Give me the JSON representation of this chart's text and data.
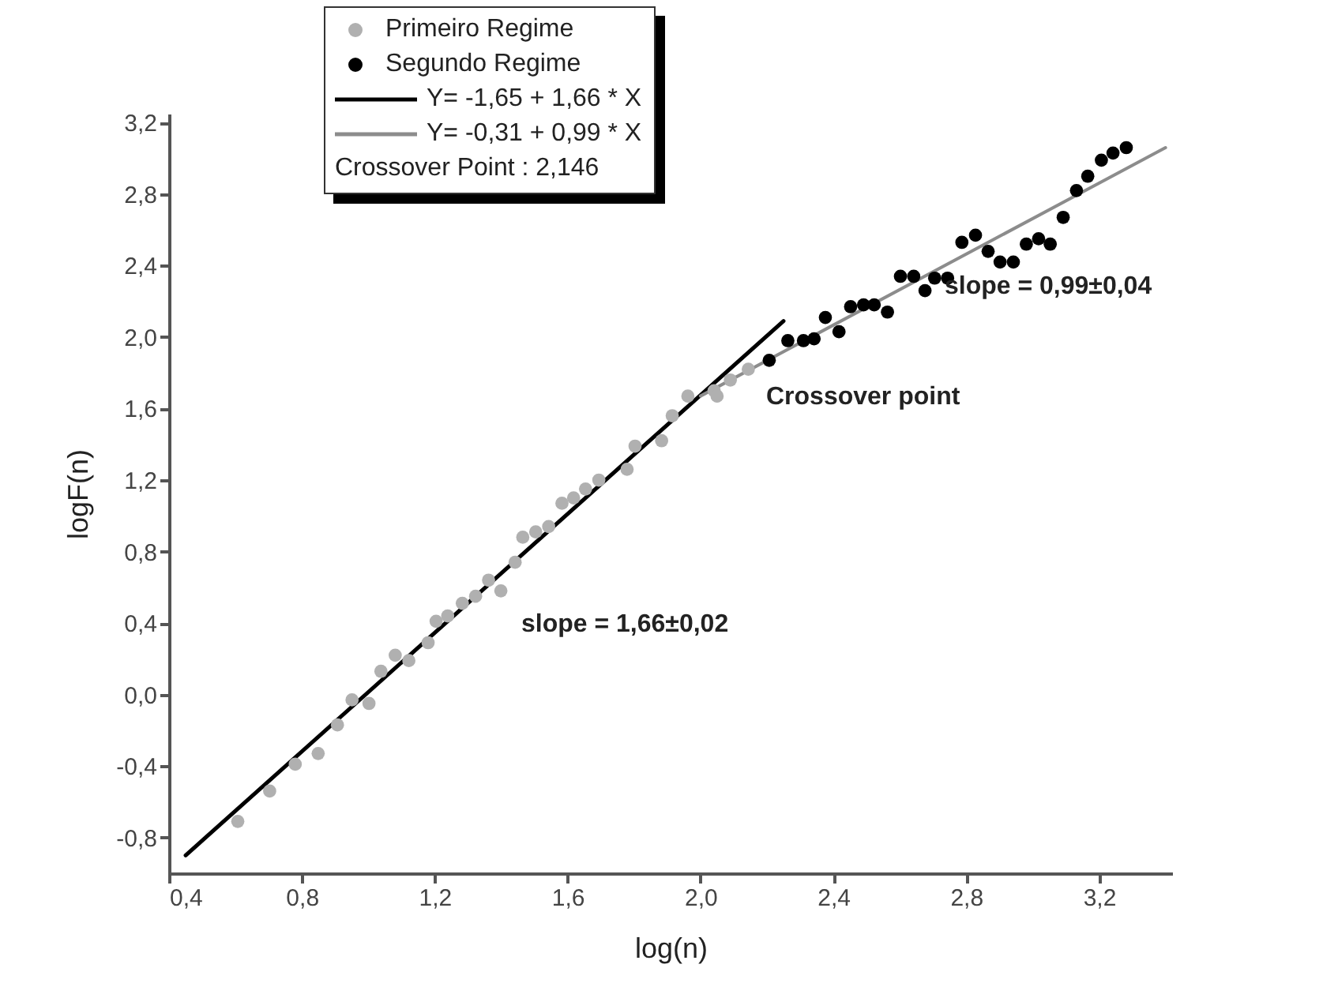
{
  "chart_data": {
    "type": "scatter",
    "xlabel": "log(n)",
    "ylabel": "logF(n)",
    "xlim": [
      0.4,
      3.42
    ],
    "ylim": [
      -1.0,
      3.25
    ],
    "xticks": [
      {
        "value": 0.4,
        "label": "0,4"
      },
      {
        "value": 0.8,
        "label": "0,8"
      },
      {
        "value": 1.2,
        "label": "1,2"
      },
      {
        "value": 1.6,
        "label": "1,6"
      },
      {
        "value": 2.0,
        "label": "2,0"
      },
      {
        "value": 2.4,
        "label": "2,4"
      },
      {
        "value": 2.8,
        "label": "2,8"
      },
      {
        "value": 3.2,
        "label": "3,2"
      }
    ],
    "yticks": [
      {
        "value": -0.8,
        "label": "-0,8"
      },
      {
        "value": -0.4,
        "label": "-0,4"
      },
      {
        "value": 0,
        "label": "0,0"
      },
      {
        "value": 0.4,
        "label": "0,4"
      },
      {
        "value": 0.8,
        "label": "0,8"
      },
      {
        "value": 1.2,
        "label": "1,2"
      },
      {
        "value": 1.6,
        "label": "1,6"
      },
      {
        "value": 2.0,
        "label": "2,0"
      },
      {
        "value": 2.4,
        "label": "2,4"
      },
      {
        "value": 2.8,
        "label": "2,8"
      },
      {
        "value": 3.2,
        "label": "3,2"
      }
    ],
    "legend": "top left",
    "series": [
      {
        "name": "Primeiro Regime",
        "marker": "circle",
        "color": "#b0b0b0",
        "x": [
          0.607,
          0.703,
          0.78,
          0.849,
          0.907,
          0.951,
          1.002,
          1.038,
          1.081,
          1.122,
          1.18,
          1.204,
          1.239,
          1.283,
          1.323,
          1.362,
          1.399,
          1.442,
          1.465,
          1.504,
          1.543,
          1.583,
          1.618,
          1.654,
          1.694,
          1.779,
          1.803,
          1.883,
          1.915,
          1.962,
          2.041,
          2.05,
          2.09,
          2.144
        ],
        "values": [
          -0.71,
          -0.54,
          -0.39,
          -0.33,
          -0.17,
          -0.03,
          -0.05,
          0.13,
          0.22,
          0.19,
          0.29,
          0.41,
          0.44,
          0.51,
          0.55,
          0.64,
          0.58,
          0.74,
          0.88,
          0.91,
          0.94,
          1.07,
          1.1,
          1.15,
          1.2,
          1.26,
          1.39,
          1.42,
          1.56,
          1.67,
          1.7,
          1.67,
          1.76,
          1.82
        ]
      },
      {
        "name": "Segundo Regime",
        "marker": "circle",
        "color": "#000000",
        "x": [
          2.207,
          2.263,
          2.31,
          2.342,
          2.376,
          2.417,
          2.452,
          2.491,
          2.523,
          2.563,
          2.602,
          2.642,
          2.676,
          2.705,
          2.744,
          2.787,
          2.828,
          2.866,
          2.902,
          2.942,
          2.981,
          3.018,
          3.053,
          3.092,
          3.132,
          3.166,
          3.207,
          3.242,
          3.282
        ],
        "values": [
          1.87,
          1.98,
          1.98,
          1.99,
          2.11,
          2.03,
          2.17,
          2.18,
          2.18,
          2.14,
          2.34,
          2.34,
          2.26,
          2.33,
          2.33,
          2.53,
          2.57,
          2.48,
          2.42,
          2.42,
          2.52,
          2.55,
          2.52,
          2.67,
          2.82,
          2.9,
          2.99,
          3.03,
          3.06
        ]
      },
      {
        "name": "Y= -1,65 + 1,66 * X",
        "type": "line",
        "color": "#000000",
        "line_style": "solid",
        "marker": "none",
        "x": [
          0.45,
          2.25
        ],
        "values": [
          -0.9,
          2.09
        ]
      },
      {
        "name": "Y= -0,31 + 0,99 * X",
        "type": "line",
        "color": "#8c8c8c",
        "line_style": "solid",
        "marker": "none",
        "x": [
          2.0,
          3.4
        ],
        "values": [
          1.67,
          3.06
        ]
      }
    ],
    "annotations": [
      "Crossover Point : 2,146",
      "slope = 1,66±0,02",
      "slope = 0,99±0,04",
      "Crossover point"
    ]
  }
}
